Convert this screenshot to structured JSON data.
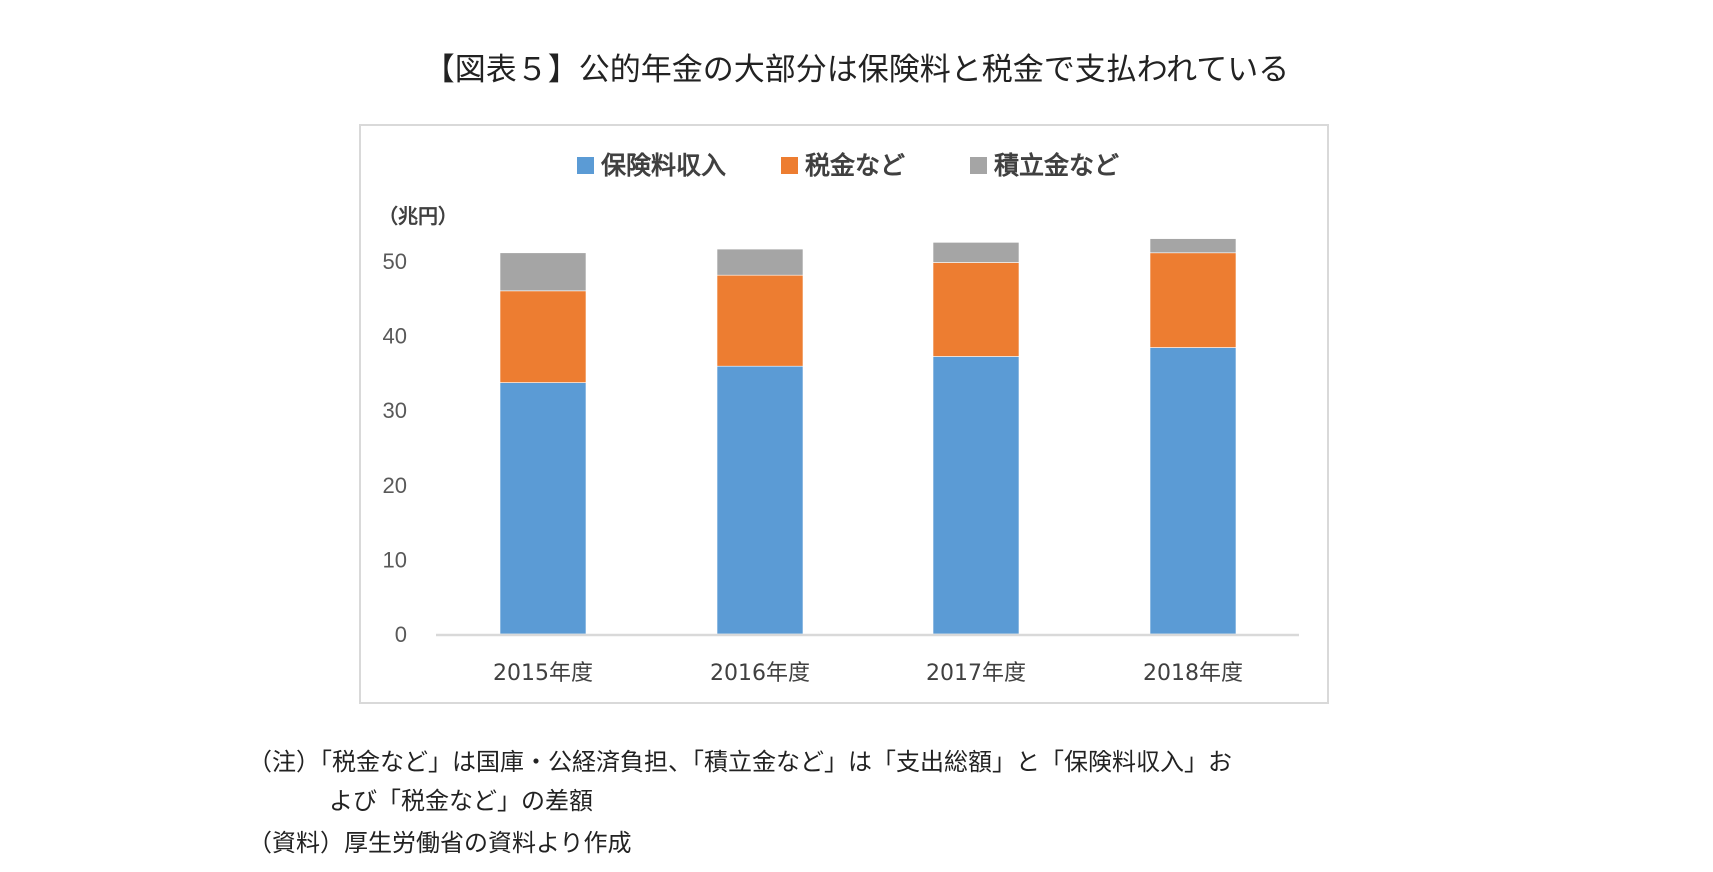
{
  "title": "【図表５】公的年金の大部分は保険料と税金で支払われている",
  "chart_data": {
    "type": "bar",
    "stacked": true,
    "title": "【図表５】公的年金の大部分は保険料と税金で支払われている",
    "ylabel": "（兆円）",
    "xlabel": "",
    "ylim": [
      0,
      50
    ],
    "yticks": [
      0,
      10,
      20,
      30,
      40,
      50
    ],
    "categories": [
      "2015年度",
      "2016年度",
      "2017年度",
      "2018年度"
    ],
    "series": [
      {
        "name": "保険料収入",
        "color": "#5b9bd5",
        "values": [
          33.7,
          35.9,
          37.2,
          38.4
        ]
      },
      {
        "name": "税金など",
        "color": "#ed7d31",
        "values": [
          12.3,
          12.2,
          12.6,
          12.7
        ]
      },
      {
        "name": "積立金など",
        "color": "#a5a5a5",
        "values": [
          5.1,
          3.5,
          2.7,
          1.9
        ]
      }
    ],
    "legend": "top",
    "grid": false
  },
  "notes": {
    "line1": "（注）「税金など」は国庫・公経済負担、「積立金など」は「支出総額」と「保険料収入」お",
    "line2": "よび「税金など」の差額",
    "line3": "（資料）厚生労働省の資料より作成"
  }
}
